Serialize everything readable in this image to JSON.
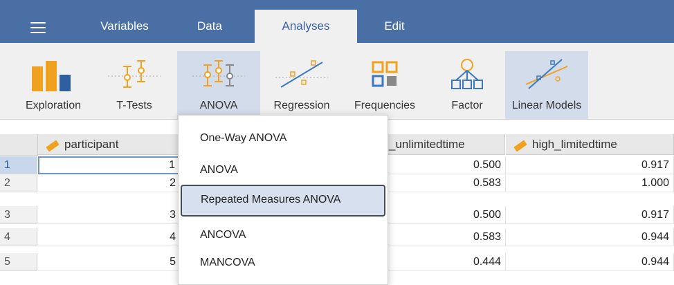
{
  "menu": {
    "icon": "hamburger-icon"
  },
  "tabs": [
    {
      "label": "Variables",
      "active": false
    },
    {
      "label": "Data",
      "active": false
    },
    {
      "label": "Analyses",
      "active": true
    },
    {
      "label": "Edit",
      "active": false
    }
  ],
  "ribbon": [
    {
      "label": "Exploration",
      "icon": "exploration-icon"
    },
    {
      "label": "T-Tests",
      "icon": "t-tests-icon"
    },
    {
      "label": "ANOVA",
      "icon": "anova-icon",
      "highlighted": true
    },
    {
      "label": "Regression",
      "icon": "regression-icon"
    },
    {
      "label": "Frequencies",
      "icon": "frequencies-icon"
    },
    {
      "label": "Factor",
      "icon": "factor-icon"
    },
    {
      "label": "Linear Models",
      "icon": "linear-models-icon",
      "highlighted": true
    }
  ],
  "grid": {
    "columns": [
      {
        "label": "participant",
        "icon": "ruler-icon"
      },
      {
        "label": "_unlimitedtime"
      },
      {
        "label": "high_limitedtime",
        "icon": "ruler-icon"
      }
    ],
    "rows": [
      {
        "num": "1",
        "participant": "1",
        "unlimited": "0.500",
        "high": "0.917"
      },
      {
        "num": "2",
        "participant": "2",
        "unlimited": "0.583",
        "high": "1.000"
      },
      {
        "num": "3",
        "participant": "3",
        "unlimited": "0.500",
        "high": "0.917"
      },
      {
        "num": "4",
        "participant": "4",
        "unlimited": "0.583",
        "high": "0.944"
      },
      {
        "num": "5",
        "participant": "5",
        "unlimited": "0.444",
        "high": "0.944"
      }
    ]
  },
  "dropdown": {
    "items": [
      {
        "label": "One-Way ANOVA"
      },
      {
        "label": "ANOVA"
      },
      {
        "label": "Repeated Measures ANOVA",
        "highlighted": true
      },
      {
        "label": "ANCOVA"
      },
      {
        "label": "MANCOVA"
      }
    ]
  },
  "colors": {
    "accent": "#4a6fa5",
    "ribbon_highlight": "#d3dceb",
    "icon_orange": "#f0a21e"
  }
}
